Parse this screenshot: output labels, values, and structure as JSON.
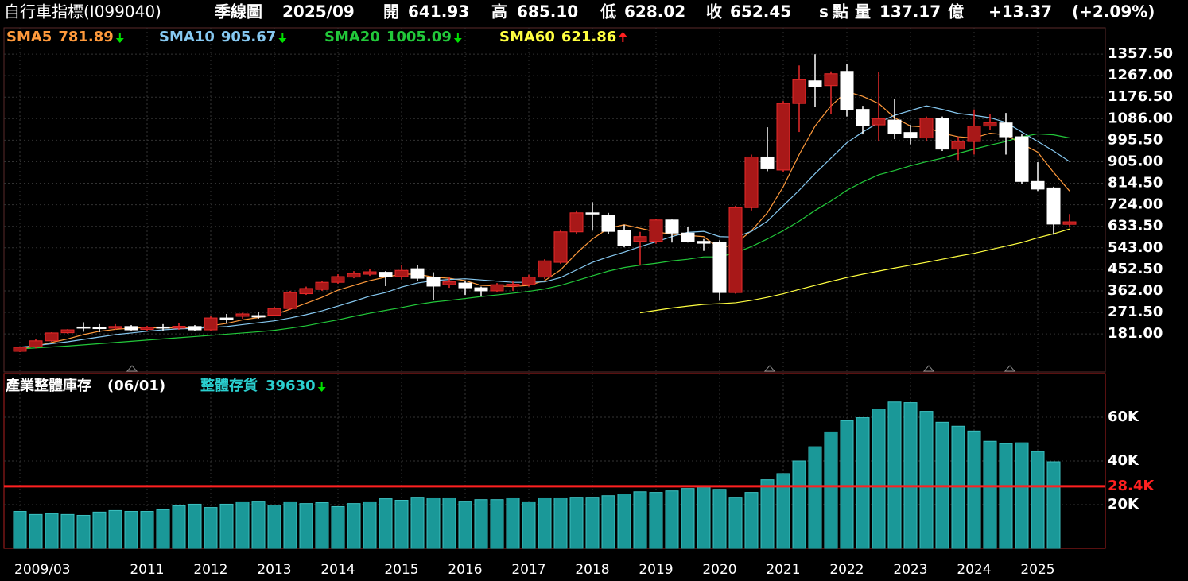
{
  "header": {
    "title": "自行車指標(I099040)",
    "period": "季線圖",
    "date": "2025/09",
    "open_label": "開",
    "open": 641.93,
    "high_label": "高",
    "high": {
      "value": 685.1,
      "label": "685.10"
    },
    "low_label": "低",
    "low": 628.02,
    "close_label": "收",
    "close": 652.45,
    "close_flag": "s",
    "close_unit": "點",
    "volume_label": "量",
    "volume": 137.17,
    "volume_unit": "億",
    "change": {
      "value": 13.37,
      "label": "+13.37"
    },
    "change_pct": {
      "value": 2.09,
      "label": "(+2.09%)"
    }
  },
  "chart_data": [
    {
      "type": "candlestick",
      "categories": [
        "2009/03",
        null,
        null,
        null,
        null,
        null,
        null,
        null,
        "2011",
        null,
        null,
        null,
        "2012",
        null,
        null,
        null,
        "2013",
        null,
        null,
        null,
        "2014",
        null,
        null,
        null,
        "2015",
        null,
        null,
        null,
        "2016",
        null,
        null,
        null,
        "2017",
        null,
        null,
        null,
        "2018",
        null,
        null,
        null,
        "2019",
        null,
        null,
        null,
        "2020",
        null,
        null,
        null,
        "2021",
        null,
        null,
        null,
        "2022",
        null,
        null,
        null,
        "2023",
        null,
        null,
        null,
        "2024",
        null,
        null,
        null,
        "2025",
        null,
        null
      ],
      "open": [
        108,
        127,
        152,
        186,
        210,
        208,
        205,
        212,
        200,
        210,
        205,
        212,
        198,
        248,
        255,
        258,
        260,
        288,
        350,
        368,
        398,
        420,
        432,
        440,
        422,
        455,
        420,
        388,
        395,
        375,
        362,
        382,
        388,
        420,
        482,
        610,
        690,
        680,
        615,
        570,
        570,
        660,
        605,
        570,
        565,
        355,
        712,
        925,
        870,
        1150,
        1245,
        1225,
        1285,
        1125,
        1060,
        1080,
        1028,
        1005,
        1088,
        958,
        990,
        1055,
        1068,
        1010,
        822,
        795,
        641.93
      ],
      "high": [
        128,
        160,
        188,
        201,
        230,
        222,
        222,
        218,
        215,
        222,
        225,
        218,
        258,
        265,
        270,
        275,
        295,
        362,
        380,
        402,
        432,
        445,
        455,
        445,
        470,
        470,
        440,
        420,
        405,
        380,
        395,
        402,
        430,
        495,
        620,
        700,
        735,
        690,
        640,
        610,
        665,
        662,
        630,
        580,
        575,
        720,
        935,
        1050,
        1160,
        1310,
        1357,
        1285,
        1315,
        1140,
        1284,
        1170,
        1060,
        1095,
        1095,
        1010,
        1125,
        1105,
        1110,
        1020,
        903,
        800,
        685.1
      ],
      "low": [
        105,
        120,
        148,
        182,
        190,
        188,
        198,
        195,
        195,
        195,
        198,
        192,
        195,
        228,
        245,
        245,
        255,
        282,
        345,
        362,
        392,
        415,
        425,
        382,
        410,
        405,
        322,
        375,
        345,
        338,
        355,
        362,
        380,
        412,
        475,
        600,
        615,
        600,
        545,
        470,
        560,
        565,
        565,
        530,
        320,
        350,
        700,
        865,
        860,
        1030,
        1135,
        1105,
        1095,
        1020,
        990,
        1000,
        978,
        990,
        950,
        912,
        935,
        1040,
        935,
        812,
        782,
        598,
        628.02
      ],
      "close": [
        125,
        152,
        185,
        198,
        208,
        205,
        212,
        198,
        208,
        206,
        213,
        198,
        248,
        243,
        265,
        252,
        288,
        355,
        372,
        398,
        422,
        435,
        442,
        422,
        448,
        415,
        382,
        400,
        375,
        362,
        388,
        390,
        420,
        488,
        610,
        690,
        685,
        612,
        552,
        590,
        660,
        605,
        570,
        562,
        355,
        712,
        925,
        875,
        1150,
        1250,
        1222,
        1275,
        1125,
        1058,
        1085,
        1022,
        1005,
        1088,
        958,
        990,
        1055,
        1070,
        1010,
        822,
        790,
        643,
        652.45
      ],
      "up_color": "#a81818",
      "down_color": "#ffffff",
      "series": [
        {
          "name": "SMA5",
          "color": "#ff9a3c",
          "values": [
            118,
            130,
            145,
            160,
            178,
            192,
            200,
            205,
            207,
            206,
            207,
            205,
            215,
            225,
            240,
            250,
            262,
            285,
            310,
            335,
            365,
            385,
            405,
            420,
            432,
            432,
            420,
            415,
            405,
            385,
            383,
            380,
            385,
            405,
            450,
            520,
            580,
            625,
            640,
            625,
            610,
            600,
            595,
            590,
            540,
            560,
            615,
            690,
            800,
            935,
            1055,
            1140,
            1200,
            1180,
            1150,
            1090,
            1055,
            1050,
            1025,
            1010,
            1005,
            1025,
            1018,
            980,
            945,
            860,
            781.89
          ]
        },
        {
          "name": "SMA10",
          "color": "#86c8f0",
          "values": [
            125,
            132,
            140,
            148,
            158,
            168,
            178,
            185,
            192,
            198,
            202,
            204,
            208,
            212,
            220,
            228,
            236,
            248,
            262,
            278,
            298,
            318,
            340,
            355,
            378,
            395,
            405,
            410,
            413,
            408,
            403,
            398,
            398,
            400,
            418,
            450,
            482,
            505,
            525,
            548,
            568,
            590,
            608,
            612,
            590,
            588,
            612,
            655,
            720,
            785,
            855,
            920,
            985,
            1030,
            1070,
            1100,
            1120,
            1140,
            1125,
            1108,
            1100,
            1090,
            1070,
            1030,
            990,
            950,
            905.67
          ]
        },
        {
          "name": "SMA20",
          "color": "#22c83a",
          "values": [
            118,
            122,
            126,
            130,
            135,
            140,
            145,
            150,
            155,
            160,
            165,
            170,
            175,
            180,
            185,
            190,
            196,
            205,
            215,
            228,
            240,
            255,
            268,
            280,
            292,
            305,
            315,
            322,
            330,
            338,
            345,
            352,
            360,
            370,
            385,
            405,
            425,
            445,
            460,
            470,
            478,
            488,
            495,
            505,
            505,
            522,
            548,
            580,
            615,
            655,
            700,
            740,
            785,
            820,
            850,
            868,
            888,
            905,
            920,
            940,
            958,
            975,
            990,
            1010,
            1022,
            1018,
            1005.09
          ]
        },
        {
          "name": "SMA60",
          "color": "#ffff40",
          "values": [
            null,
            null,
            null,
            null,
            null,
            null,
            null,
            null,
            null,
            null,
            null,
            null,
            null,
            null,
            null,
            null,
            null,
            null,
            null,
            null,
            null,
            null,
            null,
            null,
            null,
            null,
            null,
            null,
            null,
            null,
            null,
            null,
            null,
            null,
            null,
            null,
            null,
            null,
            null,
            270,
            280,
            290,
            298,
            305,
            308,
            312,
            322,
            335,
            350,
            368,
            385,
            402,
            418,
            432,
            445,
            458,
            470,
            482,
            495,
            508,
            520,
            535,
            550,
            565,
            585,
            602,
            621.86
          ]
        }
      ],
      "ylim": [
        21,
        1468
      ],
      "yticks": [
        {
          "value": 181,
          "label": "181.00"
        },
        {
          "value": 271.5,
          "label": "271.50"
        },
        {
          "value": 362,
          "label": "362.00"
        },
        {
          "value": 452.5,
          "label": "452.50"
        },
        {
          "value": 543,
          "label": "543.00"
        },
        {
          "value": 633.5,
          "label": "633.50"
        },
        {
          "value": 724,
          "label": "724.00"
        },
        {
          "value": 814.5,
          "label": "814.50"
        },
        {
          "value": 905,
          "label": "905.00"
        },
        {
          "value": 995.5,
          "label": "995.50"
        },
        {
          "value": 1086,
          "label": "1086.00"
        },
        {
          "value": 1176.5,
          "label": "1176.50"
        },
        {
          "value": 1267,
          "label": "1267.00"
        },
        {
          "value": 1357.5,
          "label": "1357.50"
        }
      ],
      "grid": true
    },
    {
      "type": "bar",
      "title": "產業整體庫存",
      "subtitle": "(06/01)",
      "series": [
        {
          "name": "整體存貨",
          "color": "#1a9898",
          "values": [
            16900,
            15500,
            15900,
            15500,
            15100,
            16600,
            17300,
            16900,
            16900,
            17700,
            19500,
            20200,
            18700,
            20200,
            21300,
            21600,
            19800,
            21300,
            20500,
            20900,
            19100,
            20500,
            21300,
            22700,
            22000,
            23400,
            23100,
            23100,
            21600,
            22300,
            22300,
            23100,
            21300,
            23100,
            23100,
            23400,
            23400,
            24100,
            24900,
            25900,
            25600,
            26300,
            27400,
            28100,
            27000,
            23400,
            25600,
            31400,
            34200,
            40000,
            46500,
            53300,
            58400,
            59800,
            63800,
            67000,
            66700,
            62700,
            57700,
            55900,
            53700,
            49000,
            47900,
            48300,
            44300,
            39630,
            null
          ]
        }
      ],
      "ylim": [
        0,
        80000
      ],
      "yticks": [
        {
          "value": 20000,
          "label": "20K"
        },
        {
          "value": 40000,
          "label": "40K"
        },
        {
          "value": 60000,
          "label": "60K"
        }
      ],
      "reference_line": {
        "value": 28400,
        "label": "28.4K",
        "color": "#ff2020"
      },
      "grid": true
    }
  ]
}
